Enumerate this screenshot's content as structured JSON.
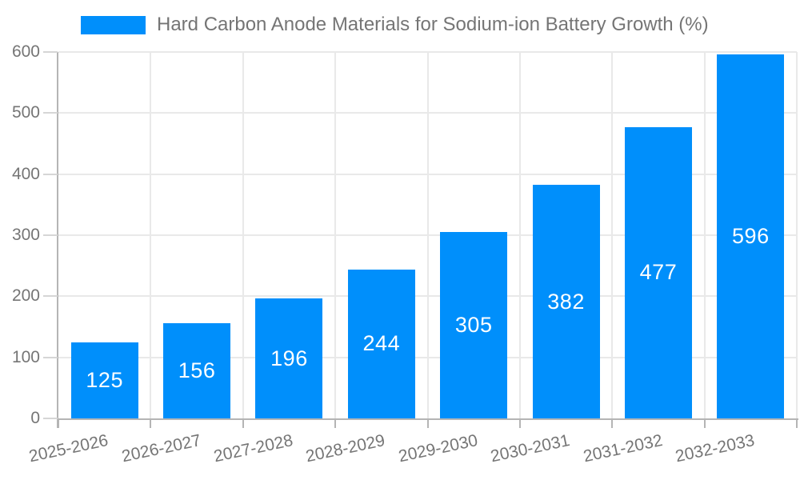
{
  "legend": {
    "series_label": "Hard Carbon Anode Materials for Sodium-ion Battery Growth (%)",
    "swatch_color": "#008FFB"
  },
  "chart_data": {
    "type": "bar",
    "title": "Hard Carbon Anode Materials for Sodium-ion Battery Growth (%)",
    "xlabel": "",
    "ylabel": "",
    "categories": [
      "2025-2026",
      "2026-2027",
      "2027-2028",
      "2028-2029",
      "2029-2030",
      "2030-2031",
      "2031-2032",
      "2032-2033"
    ],
    "series": [
      {
        "name": "Hard Carbon Anode Materials for Sodium-ion Battery Growth (%)",
        "values": [
          125,
          156,
          196,
          244,
          305,
          382,
          477,
          596
        ]
      }
    ],
    "values": [
      125,
      156,
      196,
      244,
      305,
      382,
      477,
      596
    ],
    "ylim": [
      0,
      600
    ],
    "yticks": [
      0,
      100,
      200,
      300,
      400,
      500,
      600
    ],
    "grid": true,
    "legend_position": "top-left",
    "x_label_rotation_deg": -12,
    "colors": {
      "bar": "#008FFB",
      "data_label": "#ffffff",
      "axis_text": "#757575",
      "grid_line": "#e9e9e9",
      "axis_line": "#b5b5b5",
      "y_tick": "#d6d6d6"
    }
  }
}
